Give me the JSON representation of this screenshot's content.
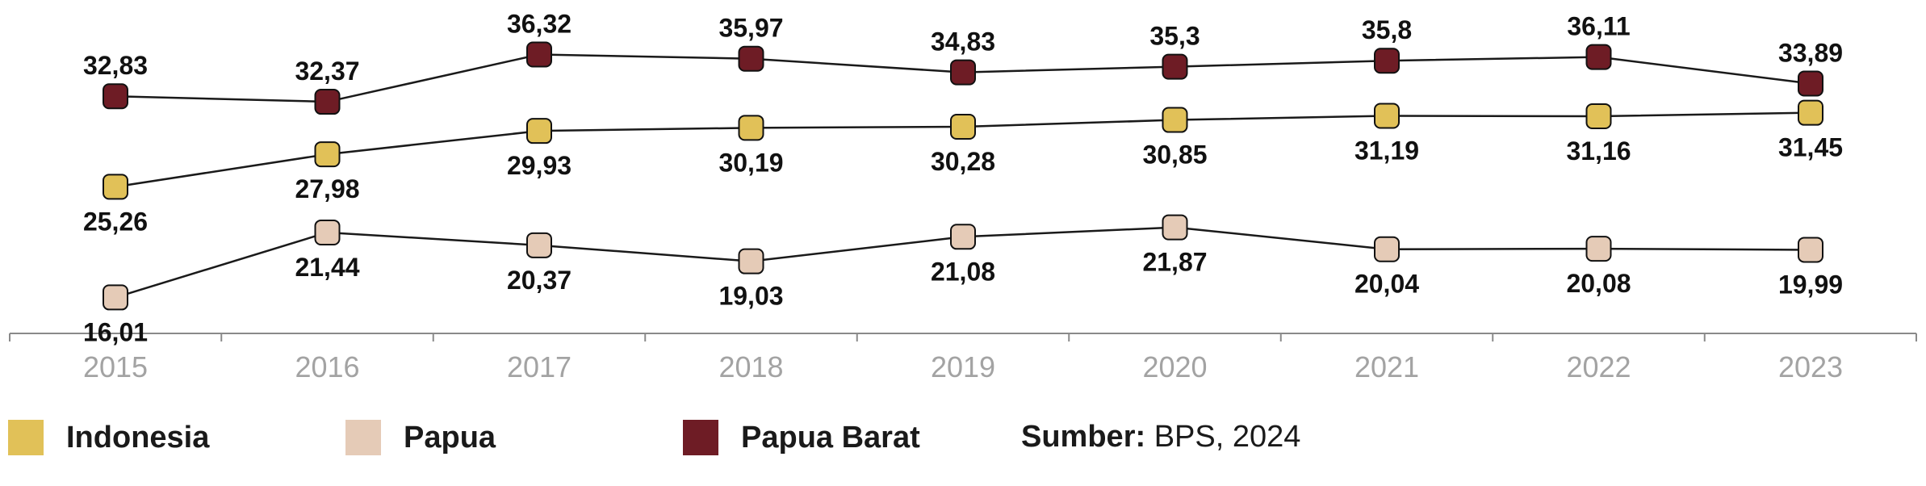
{
  "chart_data": {
    "type": "line",
    "x": [
      "2015",
      "2016",
      "2017",
      "2018",
      "2019",
      "2020",
      "2021",
      "2022",
      "2023"
    ],
    "series": [
      {
        "name": "Papua Barat",
        "color": "#6e1c25",
        "values": [
          "32,83",
          "32,37",
          "36,32",
          "35,97",
          "34,83",
          "35,3",
          "35,8",
          "36,11",
          "33,89"
        ],
        "label_pos": "above"
      },
      {
        "name": "Indonesia",
        "color": "#e1c158",
        "values": [
          "25,26",
          "27,98",
          "29,93",
          "30,19",
          "30,28",
          "30,85",
          "31,19",
          "31,16",
          "31,45"
        ],
        "label_pos": "below"
      },
      {
        "name": "Papua",
        "color": "#e5cbb7",
        "values": [
          "16,01",
          "21,44",
          "20,37",
          "19,03",
          "21,08",
          "21,87",
          "20,04",
          "20,08",
          "19,99"
        ],
        "label_pos": "below"
      }
    ],
    "ylim": [
      13,
      40
    ],
    "grid": false
  },
  "legend": [
    {
      "label": "Indonesia",
      "color": "#e1c158"
    },
    {
      "label": "Papua",
      "color": "#e5cbb7"
    },
    {
      "label": "Papua Barat",
      "color": "#6e1c25"
    }
  ],
  "source": {
    "prefix": "Sumber:",
    "text": " BPS, 2024"
  }
}
